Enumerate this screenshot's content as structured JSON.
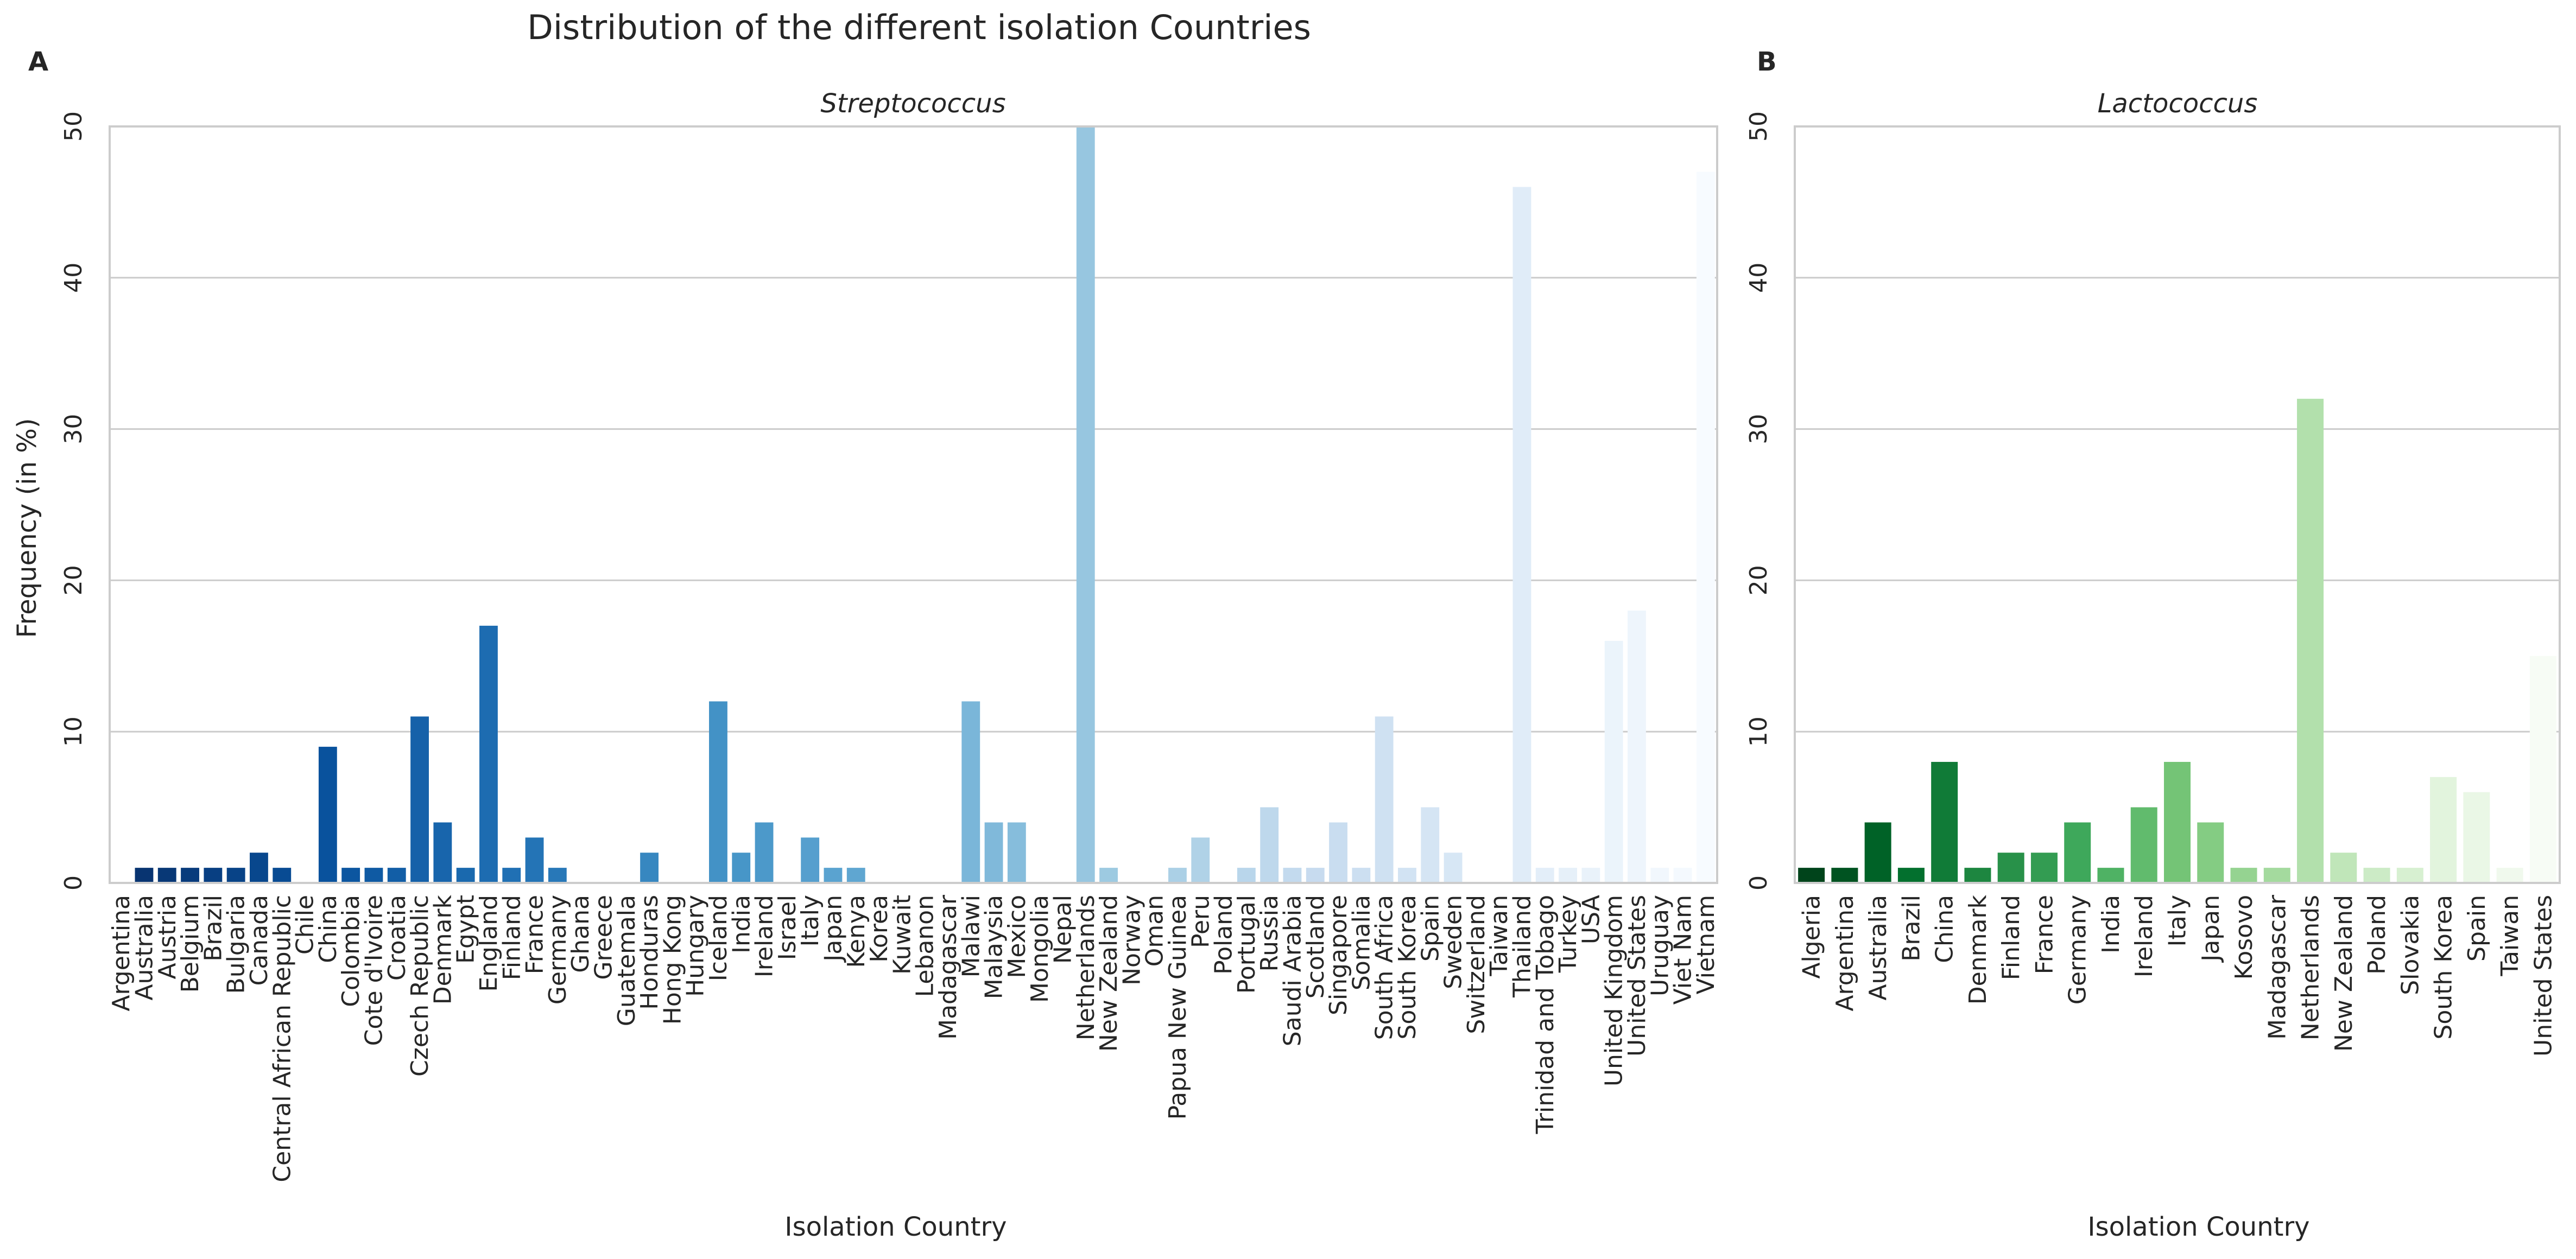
{
  "figure": {
    "suptitle": "Distribution of the different isolation Countries",
    "ylabel": "Frequency (in %)"
  },
  "chart_data": [
    {
      "type": "bar",
      "panel_label": "A",
      "title": "Streptococcus",
      "xlabel": "Isolation Country",
      "ylabel": "Frequency (in %)",
      "ylim": [
        0,
        50
      ],
      "yticks": [
        0,
        10,
        20,
        30,
        40,
        50
      ],
      "grid": true,
      "palette": "Blues_r",
      "categories": [
        "Argentina",
        "Australia",
        "Austria",
        "Belgium",
        "Brazil",
        "Bulgaria",
        "Canada",
        "Central African Republic",
        "Chile",
        "China",
        "Colombia",
        "Cote d'Ivoire",
        "Croatia",
        "Czech Republic",
        "Denmark",
        "Egypt",
        "England",
        "Finland",
        "France",
        "Germany",
        "Ghana",
        "Greece",
        "Guatemala",
        "Honduras",
        "Hong Kong",
        "Hungary",
        "Iceland",
        "India",
        "Ireland",
        "Israel",
        "Italy",
        "Japan",
        "Kenya",
        "Korea",
        "Kuwait",
        "Lebanon",
        "Madagascar",
        "Malawi",
        "Malaysia",
        "Mexico",
        "Mongolia",
        "Nepal",
        "Netherlands",
        "New Zealand",
        "Norway",
        "Oman",
        "Papua New Guinea",
        "Peru",
        "Poland",
        "Portugal",
        "Russia",
        "Saudi Arabia",
        "Scotland",
        "Singapore",
        "Somalia",
        "South Africa",
        "South Korea",
        "Spain",
        "Sweden",
        "Switzerland",
        "Taiwan",
        "Thailand",
        "Trinidad and Tobago",
        "Turkey",
        "USA",
        "United Kingdom",
        "United States",
        "Uruguay",
        "Viet Nam",
        "Vietnam"
      ],
      "values": [
        0,
        1,
        1,
        1,
        1,
        1,
        2,
        1,
        0,
        9,
        1,
        1,
        1,
        11,
        4,
        1,
        17,
        1,
        3,
        1,
        0,
        0,
        0,
        2,
        0,
        0,
        12,
        2,
        4,
        0,
        3,
        1,
        1,
        0,
        0,
        0,
        0,
        12,
        4,
        4,
        0,
        0,
        50,
        1,
        0,
        0,
        1,
        3,
        0,
        1,
        5,
        1,
        1,
        4,
        1,
        11,
        1,
        5,
        2,
        0,
        0,
        46,
        1,
        1,
        1,
        16,
        18,
        1,
        1,
        47
      ]
    },
    {
      "type": "bar",
      "panel_label": "B",
      "title": "Lactococcus",
      "xlabel": "Isolation Country",
      "ylim": [
        0,
        50
      ],
      "yticks": [
        0,
        10,
        20,
        30,
        40,
        50
      ],
      "grid": true,
      "palette": "Greens_r",
      "categories": [
        "Algeria",
        "Argentina",
        "Australia",
        "Brazil",
        "China",
        "Denmark",
        "Finland",
        "France",
        "Germany",
        "India",
        "Ireland",
        "Italy",
        "Japan",
        "Kosovo",
        "Madagascar",
        "Netherlands",
        "New Zealand",
        "Poland",
        "Slovakia",
        "South Korea",
        "Spain",
        "Taiwan",
        "United States"
      ],
      "values": [
        1,
        1,
        4,
        1,
        8,
        1,
        2,
        2,
        4,
        1,
        5,
        8,
        4,
        1,
        1,
        32,
        2,
        1,
        1,
        7,
        6,
        1,
        15
      ]
    }
  ]
}
